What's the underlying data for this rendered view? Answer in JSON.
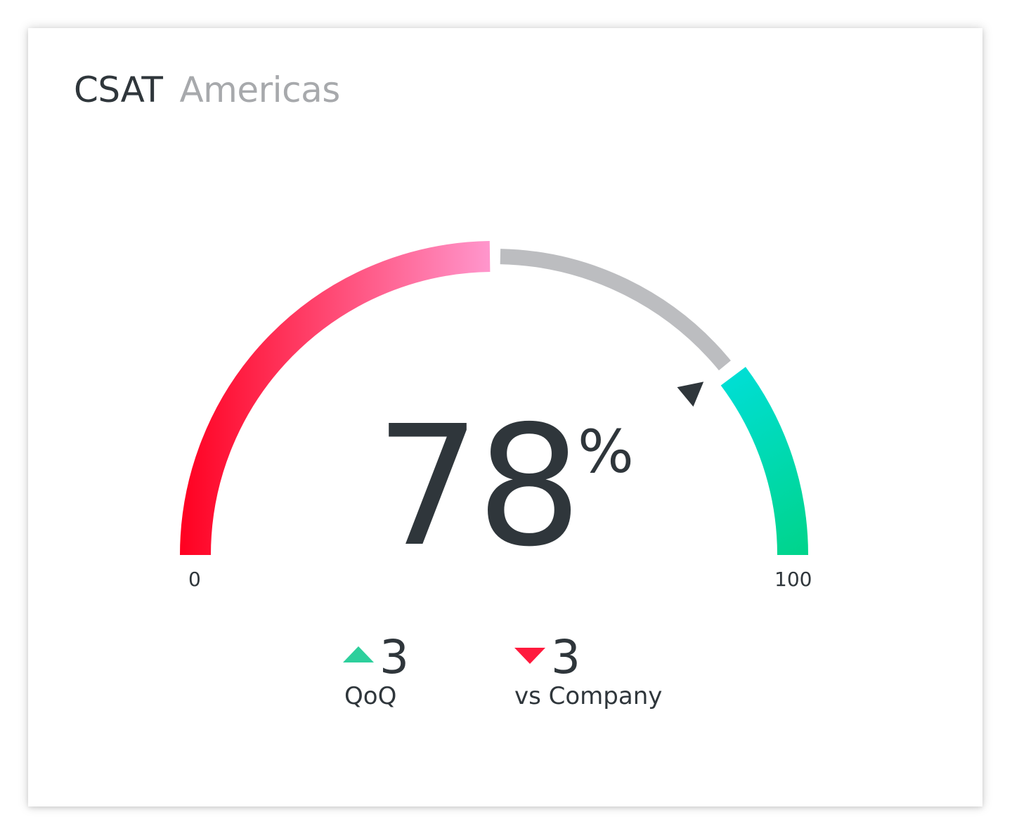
{
  "header": {
    "title": "CSAT",
    "subtitle": "Americas"
  },
  "chart_data": {
    "type": "gauge",
    "value": 78,
    "value_label": "78",
    "unit": "%",
    "min": 0,
    "max": 100,
    "min_label": "0",
    "max_label": "100",
    "target": 78,
    "bands": [
      {
        "from": 0,
        "to": 50,
        "color_start": "#ff0020",
        "color_end": "#ff96cc"
      },
      {
        "from": 50,
        "to": 79,
        "color": "#bcbdc0"
      },
      {
        "from": 79,
        "to": 100,
        "color_start": "#00e3f8",
        "color_end": "#00d48a"
      }
    ]
  },
  "metrics": [
    {
      "direction": "up",
      "value": "3",
      "label": "QoQ",
      "color": "#2dcf9c"
    },
    {
      "direction": "down",
      "value": "3",
      "label": "vs Company",
      "color": "#ff1a3d"
    }
  ]
}
